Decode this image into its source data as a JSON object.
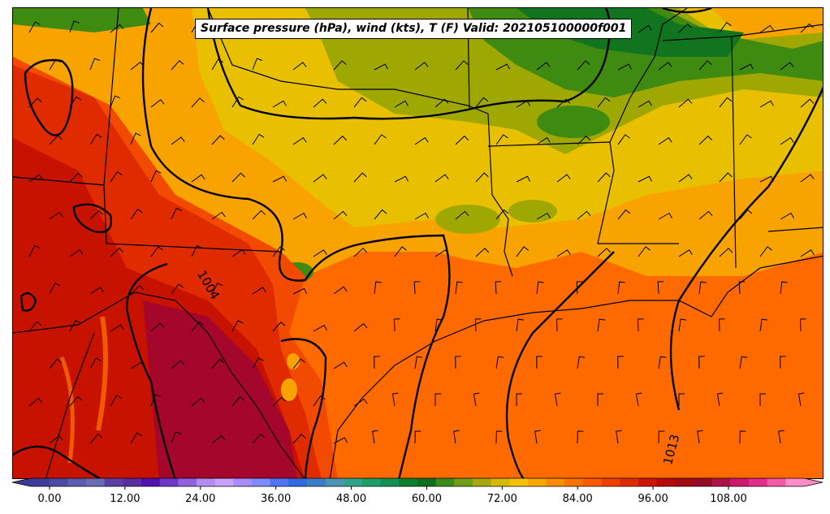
{
  "title": "Surface pressure (hPa), wind (kts), T (F) Valid: 202105100000f001",
  "contour_labels": [
    {
      "name": "isobar-label-1004",
      "text": "1004"
    },
    {
      "name": "isobar-label-1013",
      "text": "1013"
    }
  ],
  "colorbar": {
    "tick_labels": [
      "0.00",
      "12.00",
      "24.00",
      "36.00",
      "48.00",
      "60.00",
      "72.00",
      "84.00",
      "96.00",
      "108.00"
    ],
    "colors": [
      "#3e3a97",
      "#4b4aa6",
      "#5b5eb0",
      "#6a6cb3",
      "#5c3fa3",
      "#5a2ea3",
      "#4f12b0",
      "#6b38c8",
      "#8f62e0",
      "#b38cf0",
      "#c7a0f7",
      "#a98cf7",
      "#7f8cff",
      "#4f74f5",
      "#2f6be0",
      "#3a7ec7",
      "#4a93b3",
      "#2ea38a",
      "#1e9e6a",
      "#139153",
      "#0a7f2e",
      "#0d6e1f",
      "#3c8a1a",
      "#6e9e14",
      "#a6a80e",
      "#d4b90a",
      "#f2c200",
      "#f7a800",
      "#f98c00",
      "#fb7200",
      "#fc5a00",
      "#f04000",
      "#e02a00",
      "#cc1400",
      "#b80a0a",
      "#a30a14",
      "#960a28",
      "#b0124a",
      "#d0186e",
      "#e62a8e",
      "#f25aa8",
      "#ff8cc8"
    ],
    "range": [
      -6,
      120
    ]
  },
  "legend_colors": {
    "hot": "#a4062c",
    "dark_red": "#c81200",
    "red": "#e02a00",
    "orange_red": "#f24a00",
    "orange": "#ff6a00",
    "amber": "#f9a300",
    "yellow": "#e8c000",
    "olive": "#9ea800",
    "green": "#3f8a10",
    "dark_green": "#11741e"
  }
}
